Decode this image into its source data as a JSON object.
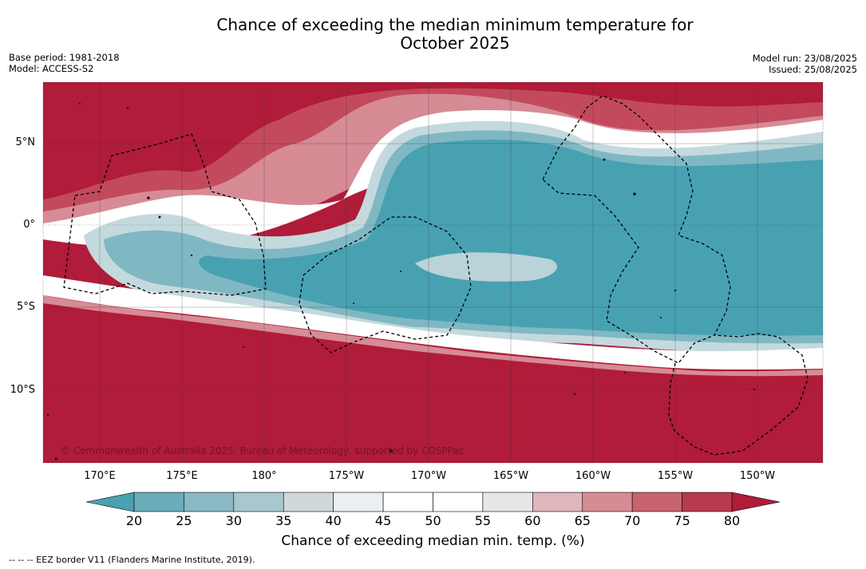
{
  "title_line1": "Chance of exceeding the median minimum temperature for",
  "title_line2": "October 2025",
  "base_period": "Base period: 1981-2018",
  "model": "Model: ACCESS-S2",
  "model_run": "Model run: 23/08/2025",
  "issued": "Issued: 25/08/2025",
  "lat_labels": [
    "5°N",
    "0°",
    "5°S",
    "10°S"
  ],
  "lon_labels": [
    "170°E",
    "175°E",
    "180°",
    "175°W",
    "170°W",
    "165°W",
    "160°W",
    "155°W",
    "150°W"
  ],
  "copyright": "© Commonwealth of Australia 2025, Bureau of Meteorology, supported by COSPPac",
  "colorbar": {
    "ticks": [
      "20",
      "25",
      "30",
      "35",
      "40",
      "45",
      "50",
      "55",
      "60",
      "65",
      "70",
      "75",
      "80"
    ],
    "colors": [
      "#5fa8b6",
      "#6aacba",
      "#8ab8c3",
      "#a9c8cd",
      "#cfd9dc",
      "#eaf0f2",
      "#ffffff",
      "#ffffff",
      "#e8e6e8",
      "#dfb6bc",
      "#d68b95",
      "#c7646f",
      "#b63b4d",
      "#b01c39"
    ],
    "low_color": "#4aa1b2",
    "high_color": "#b01c39",
    "label": "Chance of exceeding median min. temp. (%)"
  },
  "footnote": "--  --  -- EEZ border V11 (Flanders Marine Institute, 2019).",
  "palette": {
    "red": "#b01c39",
    "red_mid": "#c34a5d",
    "pink": "#d68b95",
    "light_pink": "#e6bcc2",
    "white": "#ffffff",
    "light_blue": "#c4d9dd",
    "teal_light": "#7fb8c3",
    "teal": "#48a1b1"
  }
}
